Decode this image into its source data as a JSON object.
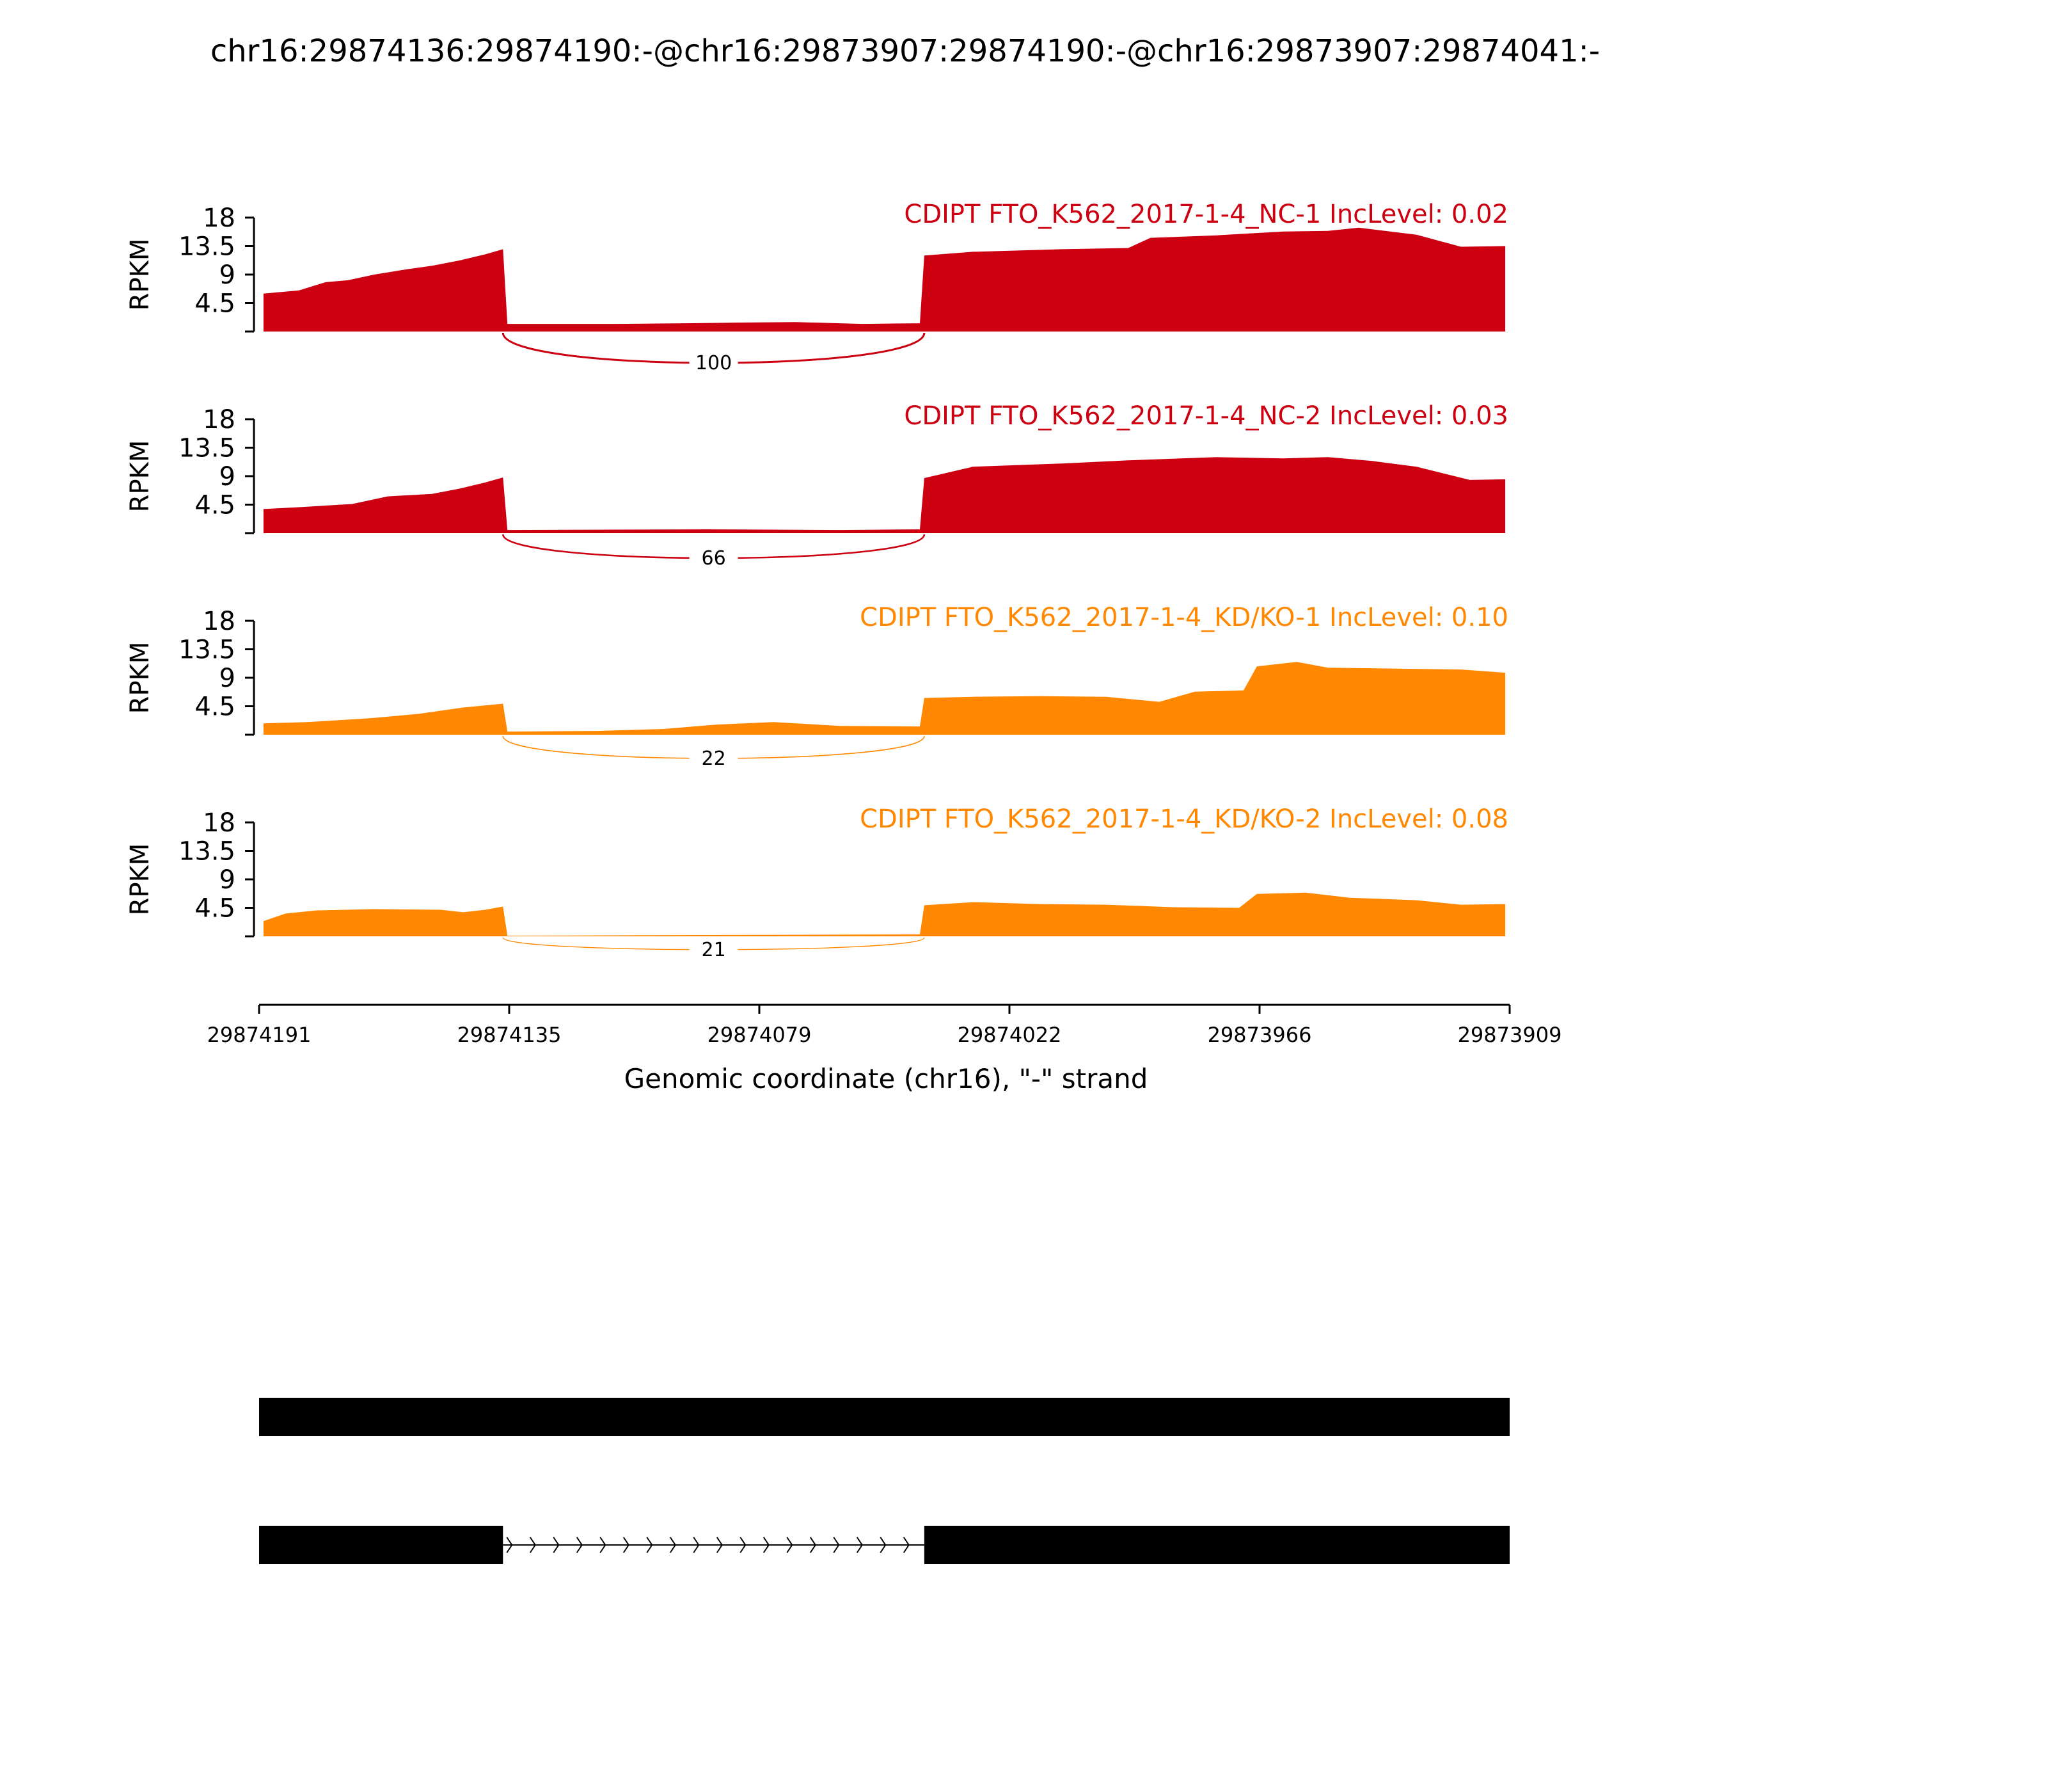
{
  "chart_data": {
    "type": "area",
    "title": "chr16:29874136:29874190:-@chr16:29873907:29874190:-@chr16:29873907:29874041:-",
    "xlabel": "Genomic coordinate (chr16), \"-\" strand",
    "ylabel": "RPKM",
    "x_ticks": [
      "29874191",
      "29874135",
      "29874079",
      "29874022",
      "29873966",
      "29873909"
    ],
    "xlim": [
      29874191,
      29873909
    ],
    "ylim": [
      0,
      18
    ],
    "y_ticks": [
      "18",
      "13.5",
      "9",
      "4.5"
    ],
    "colors": {
      "nc": "#cc0011",
      "kd": "#ff8800",
      "gene": "#000000"
    },
    "exons": {
      "upstream": [
        29874191,
        29874136
      ],
      "skipped": [
        29874135,
        29874042
      ],
      "downstream": [
        29874041,
        29873909
      ]
    },
    "series": [
      {
        "name": "CDIPT FTO_K562_2017-1-4_NC-1 IncLevel: 0.02",
        "group": "nc",
        "junction_reads": "100",
        "profile": [
          [
            29874190,
            6.0
          ],
          [
            29874182,
            6.5
          ],
          [
            29874176,
            7.8
          ],
          [
            29874171,
            8.1
          ],
          [
            29874165,
            9.0
          ],
          [
            29874158,
            9.8
          ],
          [
            29874152,
            10.4
          ],
          [
            29874146,
            11.2
          ],
          [
            29874140,
            12.2
          ],
          [
            29874136,
            13.0
          ],
          [
            29874135,
            1.2
          ],
          [
            29874110,
            1.2
          ],
          [
            29874095,
            1.3
          ],
          [
            29874085,
            1.4
          ],
          [
            29874070,
            1.5
          ],
          [
            29874055,
            1.2
          ],
          [
            29874042,
            1.3
          ],
          [
            29874041,
            12.0
          ],
          [
            29874030,
            12.6
          ],
          [
            29874010,
            13.0
          ],
          [
            29873995,
            13.2
          ],
          [
            29873990,
            14.8
          ],
          [
            29873975,
            15.2
          ],
          [
            29873960,
            15.8
          ],
          [
            29873950,
            15.9
          ],
          [
            29873943,
            16.4
          ],
          [
            29873930,
            15.3
          ],
          [
            29873920,
            13.4
          ],
          [
            29873910,
            13.5
          ]
        ]
      },
      {
        "name": "CDIPT FTO_K562_2017-1-4_NC-2 IncLevel: 0.03",
        "group": "nc",
        "junction_reads": "66",
        "profile": [
          [
            29874190,
            3.8
          ],
          [
            29874182,
            4.1
          ],
          [
            29874170,
            4.6
          ],
          [
            29874162,
            5.8
          ],
          [
            29874152,
            6.2
          ],
          [
            29874146,
            7.0
          ],
          [
            29874140,
            8.0
          ],
          [
            29874136,
            8.8
          ],
          [
            29874135,
            0.5
          ],
          [
            29874090,
            0.6
          ],
          [
            29874060,
            0.5
          ],
          [
            29874042,
            0.6
          ],
          [
            29874041,
            8.7
          ],
          [
            29874030,
            10.5
          ],
          [
            29874010,
            11.0
          ],
          [
            29873995,
            11.5
          ],
          [
            29873975,
            12.0
          ],
          [
            29873960,
            11.8
          ],
          [
            29873950,
            12.0
          ],
          [
            29873940,
            11.4
          ],
          [
            29873930,
            10.5
          ],
          [
            29873918,
            8.4
          ],
          [
            29873910,
            8.5
          ]
        ]
      },
      {
        "name": "CDIPT FTO_K562_2017-1-4_KD/KO-1 IncLevel: 0.10",
        "group": "kd",
        "junction_reads": "22",
        "profile": [
          [
            29874190,
            1.8
          ],
          [
            29874180,
            2.0
          ],
          [
            29874166,
            2.6
          ],
          [
            29874155,
            3.3
          ],
          [
            29874145,
            4.3
          ],
          [
            29874136,
            4.9
          ],
          [
            29874135,
            0.5
          ],
          [
            29874115,
            0.6
          ],
          [
            29874100,
            0.9
          ],
          [
            29874088,
            1.6
          ],
          [
            29874075,
            2.0
          ],
          [
            29874060,
            1.4
          ],
          [
            29874042,
            1.3
          ],
          [
            29874041,
            5.8
          ],
          [
            29874030,
            6.0
          ],
          [
            29874015,
            6.1
          ],
          [
            29874000,
            6.0
          ],
          [
            29873988,
            5.2
          ],
          [
            29873980,
            6.8
          ],
          [
            29873969,
            7.0
          ],
          [
            29873966,
            10.8
          ],
          [
            29873957,
            11.5
          ],
          [
            29873950,
            10.6
          ],
          [
            29873920,
            10.3
          ],
          [
            29873910,
            9.8
          ]
        ]
      },
      {
        "name": "CDIPT FTO_K562_2017-1-4_KD/KO-2 IncLevel: 0.08",
        "group": "kd",
        "junction_reads": "21",
        "profile": [
          [
            29874190,
            2.4
          ],
          [
            29874185,
            3.6
          ],
          [
            29874178,
            4.1
          ],
          [
            29874165,
            4.3
          ],
          [
            29874150,
            4.2
          ],
          [
            29874145,
            3.8
          ],
          [
            29874140,
            4.2
          ],
          [
            29874136,
            4.7
          ],
          [
            29874135,
            0.1
          ],
          [
            29874090,
            0.2
          ],
          [
            29874042,
            0.3
          ],
          [
            29874041,
            4.9
          ],
          [
            29874030,
            5.4
          ],
          [
            29874015,
            5.1
          ],
          [
            29874000,
            5.0
          ],
          [
            29873985,
            4.6
          ],
          [
            29873970,
            4.5
          ],
          [
            29873966,
            6.7
          ],
          [
            29873955,
            6.9
          ],
          [
            29873945,
            6.1
          ],
          [
            29873930,
            5.7
          ],
          [
            29873920,
            5.0
          ],
          [
            29873910,
            5.1
          ]
        ]
      }
    ]
  }
}
